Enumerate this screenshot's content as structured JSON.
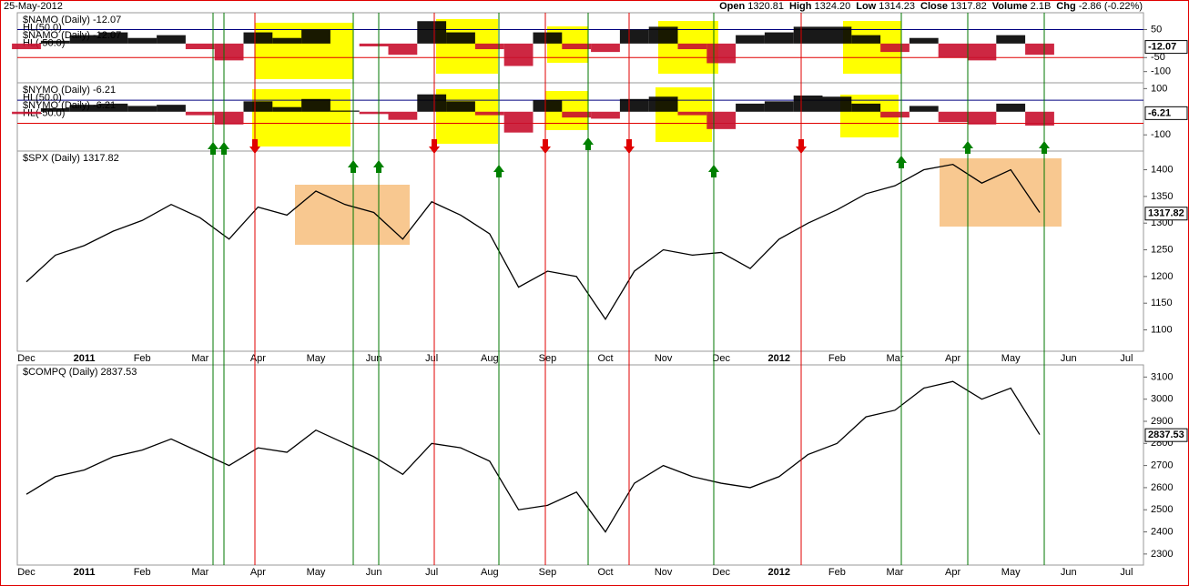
{
  "header": {
    "date": "25-May-2012",
    "quote": [
      {
        "label": "Open",
        "value": "1320.81"
      },
      {
        "label": "High",
        "value": "1324.20"
      },
      {
        "label": "Low",
        "value": "1314.23"
      },
      {
        "label": "Close",
        "value": "1317.82"
      },
      {
        "label": "Volume",
        "value": "2.1B"
      },
      {
        "label": "Chg",
        "value": "-2.86 (-0.22%)"
      }
    ]
  },
  "chart_data": [
    {
      "type": "oscillator",
      "title": "$NAMO (Daily) -12.07",
      "series": [
        {
          "name": "$NAMO (Daily) -12.07",
          "color": "#000000",
          "negative_color": "#c8102e",
          "values": [
            -20,
            10,
            30,
            40,
            20,
            30,
            -20,
            -60,
            40,
            20,
            50,
            0,
            -10,
            -40,
            80,
            40,
            -20,
            -80,
            40,
            -20,
            -30,
            50,
            60,
            -20,
            -70,
            30,
            40,
            60,
            60,
            30,
            -30,
            20,
            -50,
            -60,
            30,
            -40,
            null,
            null,
            null,
            null
          ]
        }
      ],
      "hl_lines": [
        {
          "value": 50,
          "label": "HL(50.0)",
          "color": "#000080"
        },
        {
          "value": -50,
          "label": "HL(-50.0)",
          "color": "#e00000"
        }
      ],
      "last_value": -12.07,
      "ylim": [
        -140,
        110
      ],
      "yticks": [
        50,
        -50,
        -100
      ]
    },
    {
      "type": "oscillator",
      "title": "$NYMO (Daily) -6.21",
      "series": [
        {
          "name": "$NYMO (Daily) -6.21",
          "color": "#000000",
          "negative_color": "#c8102e",
          "values": [
            -10,
            15,
            30,
            35,
            25,
            30,
            -15,
            -55,
            45,
            20,
            55,
            5,
            -10,
            -35,
            75,
            45,
            -15,
            -90,
            50,
            -25,
            -30,
            55,
            65,
            -15,
            -75,
            35,
            45,
            70,
            65,
            35,
            -25,
            25,
            -45,
            -55,
            35,
            -60,
            null,
            null,
            null,
            null
          ]
        }
      ],
      "hl_lines": [
        {
          "value": 50,
          "label": "HL(50.0)",
          "color": "#000080"
        },
        {
          "value": -50,
          "label": "HL(-50.0)",
          "color": "#e00000"
        }
      ],
      "last_value": -6.21,
      "ylim": [
        -170,
        125
      ],
      "yticks": [
        100,
        -100
      ]
    },
    {
      "type": "line",
      "title": "$SPX (Daily) 1317.82",
      "categories": [
        "Dec",
        null,
        "2011",
        null,
        "Feb",
        null,
        "Mar",
        null,
        "Apr",
        null,
        "May",
        null,
        "Jun",
        null,
        "Jul",
        null,
        "Aug",
        null,
        "Sep",
        null,
        "Oct",
        null,
        "Nov",
        null,
        "Dec",
        null,
        "2012",
        null,
        "Feb",
        null,
        "Mar",
        null,
        "Apr",
        null,
        "May",
        null,
        "Jun",
        null,
        "Jul",
        null
      ],
      "series": [
        {
          "name": "$SPX",
          "color": "#000000",
          "values": [
            1190,
            1240,
            1258,
            1285,
            1305,
            1335,
            1310,
            1270,
            1330,
            1315,
            1360,
            1335,
            1320,
            1270,
            1340,
            1315,
            1280,
            1180,
            1210,
            1200,
            1120,
            1210,
            1250,
            1240,
            1245,
            1215,
            1270,
            1300,
            1325,
            1355,
            1370,
            1400,
            1410,
            1375,
            1400,
            1320,
            null,
            null,
            null,
            null
          ]
        }
      ],
      "last_value": 1317.82,
      "ylim": [
        1060,
        1435
      ],
      "yticks": [
        1100,
        1150,
        1200,
        1250,
        1300,
        1350,
        1400
      ]
    },
    {
      "type": "line",
      "title": "$COMPQ (Daily) 2837.53",
      "categories": [
        "Dec",
        null,
        "2011",
        null,
        "Feb",
        null,
        "Mar",
        null,
        "Apr",
        null,
        "May",
        null,
        "Jun",
        null,
        "Jul",
        null,
        "Aug",
        null,
        "Sep",
        null,
        "Oct",
        null,
        "Nov",
        null,
        "Dec",
        null,
        "2012",
        null,
        "Feb",
        null,
        "Mar",
        null,
        "Apr",
        null,
        "May",
        null,
        "Jun",
        null,
        "Jul",
        null
      ],
      "series": [
        {
          "name": "$COMPQ",
          "color": "#000000",
          "values": [
            2570,
            2650,
            2680,
            2740,
            2770,
            2820,
            2760,
            2700,
            2780,
            2760,
            2860,
            2800,
            2740,
            2660,
            2800,
            2780,
            2720,
            2500,
            2520,
            2580,
            2400,
            2620,
            2700,
            2650,
            2620,
            2600,
            2650,
            2750,
            2800,
            2920,
            2950,
            3050,
            3080,
            3000,
            3050,
            2840,
            null,
            null,
            null,
            null
          ]
        }
      ],
      "last_value": 2837.53,
      "ylim": [
        2250,
        3155
      ],
      "yticks": [
        2300,
        2400,
        2500,
        2600,
        2700,
        2800,
        2900,
        3000,
        3100
      ]
    }
  ]
}
